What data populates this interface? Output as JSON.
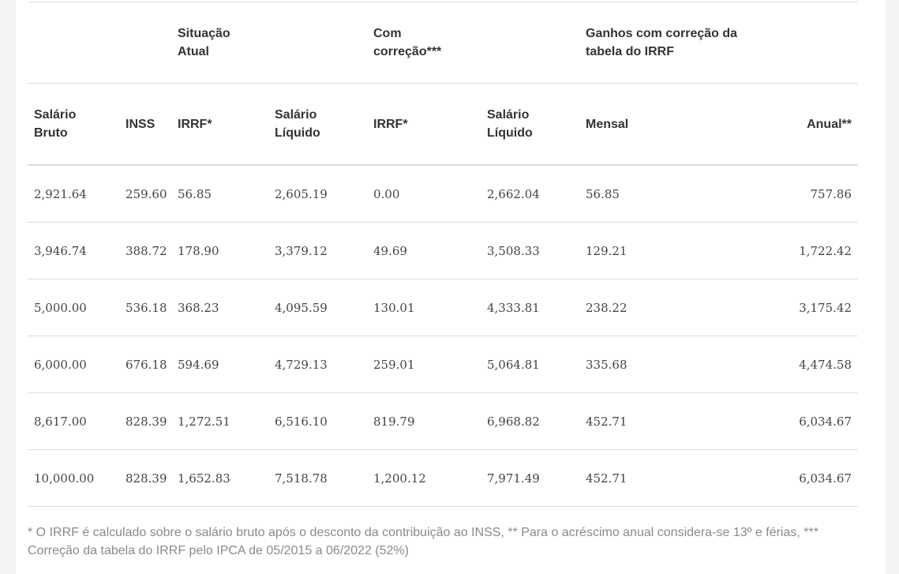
{
  "group_headers": {
    "situacao_atual": "Situação Atual",
    "com_correcao": "Com correção***",
    "ganhos": "Ganhos com correção da tabela do IRRF"
  },
  "columns": [
    "Salário Bruto",
    "INSS",
    "IRRF*",
    "Salário Líquido",
    "IRRF*",
    "Salário Líquido",
    "Mensal",
    "Anual**"
  ],
  "rows": [
    [
      "2,921.64",
      "259.60",
      "56.85",
      "2,605.19",
      "0.00",
      "2,662.04",
      "56.85",
      "757.86"
    ],
    [
      "3,946.74",
      "388.72",
      "178.90",
      "3,379.12",
      "49.69",
      "3,508.33",
      "129.21",
      "1,722.42"
    ],
    [
      "5,000.00",
      "536.18",
      "368.23",
      "4,095.59",
      "130.01",
      "4,333.81",
      "238.22",
      "3,175.42"
    ],
    [
      "6,000.00",
      "676.18",
      "594.69",
      "4,729.13",
      "259.01",
      "5,064.81",
      "335.68",
      "4,474.58"
    ],
    [
      "8,617.00",
      "828.39",
      "1,272.51",
      "6,516.10",
      "819.79",
      "6,968.82",
      "452.71",
      "6,034.67"
    ],
    [
      "10,000.00",
      "828.39",
      "1,652.83",
      "7,518.78",
      "1,200.12",
      "7,971.49",
      "452.71",
      "6,034.67"
    ]
  ],
  "footnote": "* O IRRF é calculado sobre o salário bruto após o desconto da contribuição ao INSS, ** Para o acréscimo anual considera-se 13º e férias, *** Correção da tabela do IRRF pelo IPCA de 05/2015 a 06/2022 (52%)"
}
